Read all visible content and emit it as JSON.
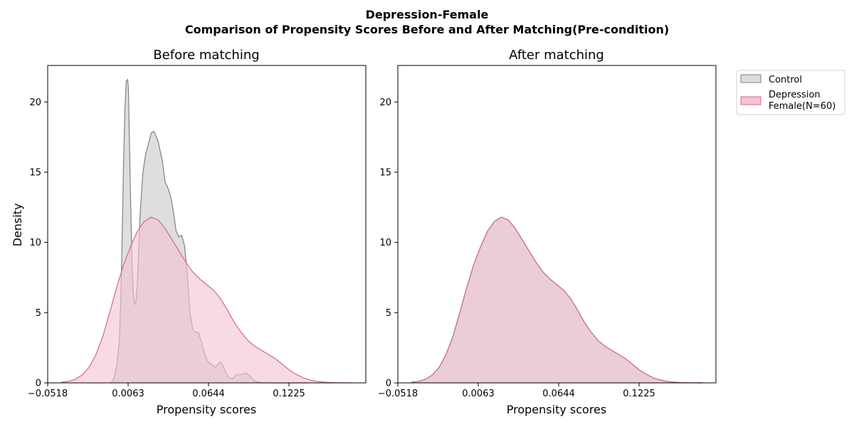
{
  "figure": {
    "title_line1": "Depression-Female",
    "title_line2": "Comparison of Propensity Scores Before and After Matching(Pre-condition)"
  },
  "legend": {
    "control_label": "Control",
    "treated_label_line1": "Depression",
    "treated_label_line2": "Female(N=60)"
  },
  "colors": {
    "control_line": "#808080",
    "control_fill": "#dcdcdc",
    "treated_line": "#d3698e",
    "treated_fill": "#f2c4d3"
  },
  "chart_data": [
    {
      "type": "area",
      "title": "Before matching",
      "xlabel": "Propensity scores",
      "ylabel": "Density",
      "xlim": [
        -0.0518,
        0.178
      ],
      "ylim": [
        0,
        22.6
      ],
      "xticks": [
        -0.0518,
        0.0063,
        0.0644,
        0.1225
      ],
      "xtick_labels": [
        "−0.0518",
        "0.0063",
        "0.0644",
        "0.1225"
      ],
      "yticks": [
        0,
        5,
        10,
        15,
        20
      ],
      "ytick_labels": [
        "0",
        "5",
        "10",
        "15",
        "20"
      ],
      "series": [
        {
          "name": "Control",
          "x": [
            -0.006,
            -0.004,
            -0.002,
            0.0,
            0.001,
            0.002,
            0.003,
            0.004,
            0.005,
            0.006,
            0.0065,
            0.007,
            0.008,
            0.009,
            0.01,
            0.011,
            0.012,
            0.013,
            0.014,
            0.015,
            0.017,
            0.019,
            0.021,
            0.023,
            0.025,
            0.028,
            0.031,
            0.033,
            0.035,
            0.037,
            0.039,
            0.041,
            0.043,
            0.045,
            0.047,
            0.049,
            0.051,
            0.053,
            0.055,
            0.057,
            0.059,
            0.061,
            0.063,
            0.065,
            0.067,
            0.069,
            0.071,
            0.073,
            0.075,
            0.077,
            0.079,
            0.081,
            0.083,
            0.085,
            0.087,
            0.089,
            0.091,
            0.093,
            0.095,
            0.097,
            0.099,
            0.101,
            0.103,
            0.105,
            0.107,
            0.109,
            0.111,
            0.113,
            0.115,
            0.117,
            0.119,
            0.121,
            0.123,
            0.125,
            0.127,
            0.129,
            0.131,
            0.133,
            0.136
          ],
          "y": [
            0,
            0.3,
            1.2,
            3.0,
            6.0,
            10.5,
            15.5,
            19.5,
            21.5,
            21.6,
            21.0,
            18.5,
            13.5,
            9.0,
            6.5,
            5.6,
            5.8,
            7.2,
            9.5,
            12.0,
            15.0,
            16.3,
            17.0,
            17.8,
            17.9,
            17.2,
            15.8,
            14.3,
            13.9,
            13.3,
            12.2,
            10.8,
            10.4,
            10.5,
            9.8,
            7.8,
            5.0,
            3.8,
            3.6,
            3.6,
            3.0,
            2.3,
            1.7,
            1.4,
            1.3,
            1.1,
            1.3,
            1.5,
            1.2,
            0.7,
            0.4,
            0.3,
            0.4,
            0.6,
            0.6,
            0.6,
            0.7,
            0.6,
            0.4,
            0.2,
            0.1,
            0.05,
            0.02,
            0.01,
            0.005,
            0,
            0,
            0,
            0,
            0,
            0,
            0,
            0,
            0,
            0,
            0,
            0,
            0,
            0
          ]
        },
        {
          "name": "Depression\nFemale(N=60)",
          "x": [
            -0.042,
            -0.037,
            -0.032,
            -0.027,
            -0.022,
            -0.017,
            -0.012,
            -0.007,
            -0.002,
            0.003,
            0.008,
            0.013,
            0.018,
            0.023,
            0.028,
            0.033,
            0.038,
            0.043,
            0.048,
            0.053,
            0.058,
            0.063,
            0.068,
            0.073,
            0.078,
            0.083,
            0.088,
            0.093,
            0.098,
            0.103,
            0.108,
            0.113,
            0.118,
            0.123,
            0.128,
            0.133,
            0.138,
            0.143,
            0.148,
            0.153,
            0.158,
            0.163,
            0.168
          ],
          "y": [
            0.05,
            0.1,
            0.25,
            0.55,
            1.1,
            2.0,
            3.3,
            5.0,
            6.8,
            8.4,
            9.7,
            10.8,
            11.5,
            11.8,
            11.6,
            11.0,
            10.2,
            9.4,
            8.6,
            7.9,
            7.4,
            7.0,
            6.6,
            6.0,
            5.2,
            4.3,
            3.6,
            3.0,
            2.6,
            2.3,
            2.0,
            1.7,
            1.3,
            0.9,
            0.6,
            0.35,
            0.2,
            0.1,
            0.05,
            0.02,
            0.01,
            0.005,
            0
          ]
        }
      ]
    },
    {
      "type": "area",
      "title": "After matching",
      "xlabel": "Propensity scores",
      "ylabel": "",
      "xlim": [
        -0.0518,
        0.178
      ],
      "ylim": [
        0,
        22.6
      ],
      "xticks": [
        -0.0518,
        0.0063,
        0.0644,
        0.1225
      ],
      "xtick_labels": [
        "−0.0518",
        "0.0063",
        "0.0644",
        "0.1225"
      ],
      "yticks": [
        0,
        5,
        10,
        15,
        20
      ],
      "ytick_labels": [
        "0",
        "5",
        "10",
        "15",
        "20"
      ],
      "series": [
        {
          "name": "Control",
          "x": [
            -0.042,
            -0.037,
            -0.032,
            -0.027,
            -0.022,
            -0.017,
            -0.012,
            -0.007,
            -0.002,
            0.003,
            0.008,
            0.013,
            0.018,
            0.023,
            0.028,
            0.033,
            0.038,
            0.043,
            0.048,
            0.053,
            0.058,
            0.063,
            0.068,
            0.073,
            0.078,
            0.083,
            0.088,
            0.093,
            0.098,
            0.103,
            0.108,
            0.113,
            0.118,
            0.123,
            0.128,
            0.133,
            0.138,
            0.143,
            0.148,
            0.153,
            0.158,
            0.163,
            0.168
          ],
          "y": [
            0.05,
            0.1,
            0.25,
            0.55,
            1.1,
            2.0,
            3.3,
            5.0,
            6.8,
            8.4,
            9.7,
            10.8,
            11.5,
            11.8,
            11.6,
            11.0,
            10.2,
            9.4,
            8.6,
            7.9,
            7.4,
            7.0,
            6.6,
            6.0,
            5.2,
            4.3,
            3.6,
            3.0,
            2.6,
            2.3,
            2.0,
            1.7,
            1.3,
            0.9,
            0.6,
            0.35,
            0.2,
            0.1,
            0.05,
            0.02,
            0.01,
            0.005,
            0
          ]
        },
        {
          "name": "Depression\nFemale(N=60)",
          "x": [
            -0.042,
            -0.037,
            -0.032,
            -0.027,
            -0.022,
            -0.017,
            -0.012,
            -0.007,
            -0.002,
            0.003,
            0.008,
            0.013,
            0.018,
            0.023,
            0.028,
            0.033,
            0.038,
            0.043,
            0.048,
            0.053,
            0.058,
            0.063,
            0.068,
            0.073,
            0.078,
            0.083,
            0.088,
            0.093,
            0.098,
            0.103,
            0.108,
            0.113,
            0.118,
            0.123,
            0.128,
            0.133,
            0.138,
            0.143,
            0.148,
            0.153,
            0.158,
            0.163,
            0.168
          ],
          "y": [
            0.05,
            0.1,
            0.25,
            0.55,
            1.1,
            2.0,
            3.3,
            5.0,
            6.8,
            8.4,
            9.7,
            10.8,
            11.5,
            11.8,
            11.6,
            11.0,
            10.2,
            9.4,
            8.6,
            7.9,
            7.4,
            7.0,
            6.6,
            6.0,
            5.2,
            4.3,
            3.6,
            3.0,
            2.6,
            2.3,
            2.0,
            1.7,
            1.3,
            0.9,
            0.6,
            0.35,
            0.2,
            0.1,
            0.05,
            0.02,
            0.01,
            0.005,
            0
          ]
        }
      ]
    }
  ]
}
